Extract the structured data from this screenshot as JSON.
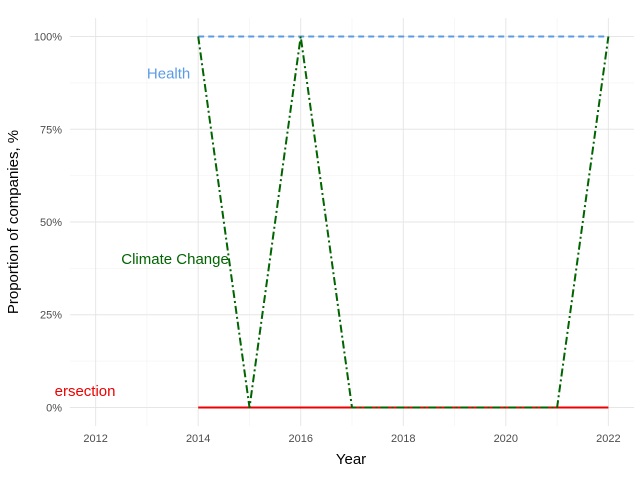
{
  "chart_data": {
    "type": "line",
    "title": "",
    "xlabel": "Year",
    "ylabel": "Proportion of companies, %",
    "xlim": [
      2011.5,
      2022.5
    ],
    "ylim": [
      -0.05,
      1.05
    ],
    "x_ticks": [
      2012,
      2014,
      2016,
      2018,
      2020,
      2022
    ],
    "x_tick_labels": [
      "2012",
      "2014",
      "2016",
      "2018",
      "2020",
      "2022"
    ],
    "y_ticks": [
      0,
      0.25,
      0.5,
      0.75,
      1
    ],
    "y_tick_labels": [
      "0%",
      "25%",
      "50%",
      "75%",
      "100%"
    ],
    "grid": true,
    "legend": "none",
    "x": [
      2014,
      2015,
      2016,
      2017,
      2018,
      2019,
      2020,
      2021,
      2022
    ],
    "series": [
      {
        "name": "Health",
        "values": [
          1,
          1,
          1,
          1,
          1,
          1,
          1,
          1,
          1
        ],
        "color": "#5b9be6",
        "dash": "dashed",
        "label_x": 2013,
        "label_y": 0.9
      },
      {
        "name": "Climate Change",
        "values": [
          1,
          0,
          1,
          0,
          0,
          0,
          0,
          0,
          1
        ],
        "color": "#006400",
        "dash": "dashdot",
        "label_x": 2012.5,
        "label_y": 0.4
      },
      {
        "name": "ersection",
        "values": [
          0,
          0,
          0,
          0,
          0,
          0,
          0,
          0,
          0
        ],
        "color": "#ee0000",
        "dash": "solid",
        "label_x": 2011.2,
        "label_y": 0.045
      }
    ]
  }
}
